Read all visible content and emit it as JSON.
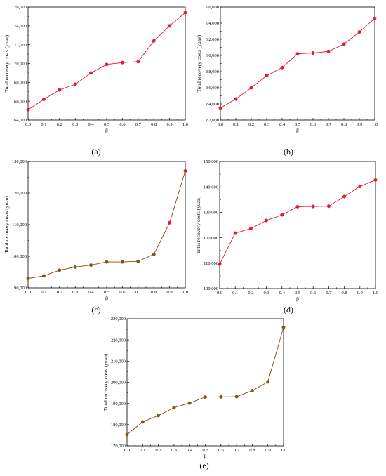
{
  "chart_data": [
    {
      "type": "line",
      "panel_label": "(a)",
      "xlabel": "β",
      "ylabel": "Total recovery costs (yuan)",
      "x": [
        0.0,
        0.1,
        0.2,
        0.3,
        0.4,
        0.5,
        0.6,
        0.7,
        0.8,
        0.9,
        1.0
      ],
      "x_tick_labels": [
        "0.0",
        "0.1",
        "0.2",
        "0.3",
        "0.4",
        "0.5",
        "0.6",
        "0.7",
        "0.8",
        "0.9",
        "1.0"
      ],
      "ylim": [
        64000,
        76000
      ],
      "y_ticks": [
        64000,
        66000,
        68000,
        70000,
        72000,
        74000,
        76000
      ],
      "y_tick_labels": [
        "64,000",
        "66,000",
        "68,000",
        "70,000",
        "72,000",
        "74,000",
        "76,000"
      ],
      "series": [
        {
          "values": [
            65100,
            66200,
            67200,
            67800,
            69000,
            69900,
            70100,
            70200,
            72400,
            74000,
            75400
          ]
        }
      ],
      "line_color": "#e8192c",
      "marker_color": "#e8192c",
      "grid": false
    },
    {
      "type": "line",
      "panel_label": "(b)",
      "xlabel": "β",
      "ylabel": "Total recovery costs (yuan)",
      "x": [
        0.0,
        0.1,
        0.2,
        0.3,
        0.4,
        0.5,
        0.6,
        0.7,
        0.8,
        0.9,
        1.0
      ],
      "x_tick_labels": [
        "0.0",
        "0.1",
        "0.2",
        "0.3",
        "0.4",
        "0.5",
        "0.6",
        "0.7",
        "0.8",
        "0.9",
        "1.0"
      ],
      "ylim": [
        82000,
        96000
      ],
      "y_ticks": [
        82000,
        84000,
        86000,
        88000,
        90000,
        92000,
        94000,
        96000
      ],
      "y_tick_labels": [
        "82,000",
        "84,000",
        "86,000",
        "88,000",
        "90,000",
        "92,000",
        "94,000",
        "96,000"
      ],
      "series": [
        {
          "values": [
            83500,
            84600,
            86000,
            87500,
            88500,
            90200,
            90300,
            90500,
            91400,
            92900,
            94600
          ]
        }
      ],
      "line_color": "#e8192c",
      "marker_color": "#e8192c",
      "grid": false
    },
    {
      "type": "line",
      "panel_label": "(c)",
      "xlabel": "β",
      "ylabel": "Total recovery costs (yuan)",
      "x": [
        0.0,
        0.1,
        0.2,
        0.3,
        0.4,
        0.5,
        0.6,
        0.7,
        0.8,
        0.9,
        1.0
      ],
      "x_tick_labels": [
        "0.0",
        "0.1",
        "0.2",
        "0.3",
        "0.4",
        "0.5",
        "0.6",
        "0.7",
        "0.8",
        "0.9",
        "1.0"
      ],
      "ylim": [
        90000,
        130000
      ],
      "y_ticks": [
        90000,
        100000,
        110000,
        120000,
        130000
      ],
      "y_tick_labels": [
        "90,000",
        "100,000",
        "110,000",
        "120,000",
        "130,000"
      ],
      "series": [
        {
          "values": [
            93000,
            93800,
            95600,
            96600,
            97200,
            98200,
            98200,
            98400,
            100600,
            110600,
            127000
          ]
        }
      ],
      "line_color": "#8b4513",
      "marker_color": "#7a5a1a",
      "last_markers_red": 2,
      "grid": false
    },
    {
      "type": "line",
      "panel_label": "(d)",
      "xlabel": "β",
      "ylabel": "Total recovery costs (yuan)",
      "x": [
        0.0,
        0.1,
        0.2,
        0.3,
        0.4,
        0.5,
        0.6,
        0.7,
        0.8,
        0.9,
        1.0
      ],
      "x_tick_labels": [
        "0.0",
        "0.1",
        "0.2",
        "0.3",
        "0.4",
        "0.5",
        "0.6",
        "0.7",
        "0.8",
        "0.9",
        "1.0"
      ],
      "ylim": [
        100000,
        150000
      ],
      "y_ticks": [
        100000,
        110000,
        120000,
        130000,
        140000,
        150000
      ],
      "y_tick_labels": [
        "100,000",
        "110,000",
        "120,000",
        "130,000",
        "140,000",
        "150,000"
      ],
      "series": [
        {
          "values": [
            109600,
            121800,
            123600,
            126800,
            129000,
            132200,
            132300,
            132400,
            136200,
            140200,
            142700
          ]
        }
      ],
      "line_color": "#e8192c",
      "marker_color": "#e8192c",
      "grid": false
    },
    {
      "type": "line",
      "panel_label": "(e)",
      "xlabel": "β",
      "ylabel": "Total recovery costs (yuan)",
      "x": [
        0.0,
        0.1,
        0.2,
        0.3,
        0.4,
        0.5,
        0.6,
        0.7,
        0.8,
        0.9,
        1.0
      ],
      "x_tick_labels": [
        "0.0",
        "0.1",
        "0.2",
        "0.3",
        "0.4",
        "0.5",
        "0.6",
        "0.7",
        "0.8",
        "0.9",
        "1.0"
      ],
      "ylim": [
        170000,
        230000
      ],
      "y_ticks": [
        170000,
        180000,
        190000,
        200000,
        210000,
        220000,
        230000
      ],
      "y_tick_labels": [
        "170,000",
        "180,000",
        "190,000",
        "200,000",
        "210,000",
        "220,000",
        "230,000"
      ],
      "series": [
        {
          "values": [
            175300,
            181300,
            184300,
            188000,
            190200,
            193000,
            193100,
            193200,
            196000,
            200200,
            226000
          ]
        }
      ],
      "line_color": "#8b4513",
      "marker_color": "#7a5a1a",
      "grid": false
    }
  ]
}
